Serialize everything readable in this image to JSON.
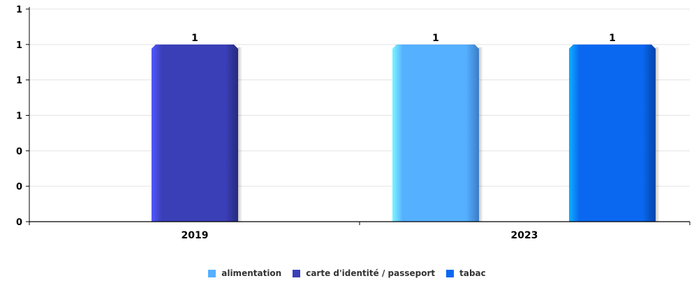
{
  "chart_data": {
    "type": "bar",
    "categories": [
      "2019",
      "2023"
    ],
    "y_tick_labels": [
      "0",
      "0",
      "0",
      "1",
      "1",
      "1",
      "1"
    ],
    "grid": true,
    "legend_position": "bottom",
    "series": [
      {
        "name": "alimentation",
        "color": "#55b0ff",
        "values": [
          null,
          1
        ]
      },
      {
        "name": "carte d'identité / passeport",
        "color": "#3a3fb8",
        "values": [
          1,
          null
        ]
      },
      {
        "name": "tabac",
        "color": "#0a68f0",
        "values": [
          null,
          1
        ]
      }
    ],
    "data_labels": [
      {
        "series": 1,
        "category": 0,
        "text": "1"
      },
      {
        "series": 0,
        "category": 1,
        "text": "1"
      },
      {
        "series": 2,
        "category": 1,
        "text": "1"
      }
    ]
  }
}
